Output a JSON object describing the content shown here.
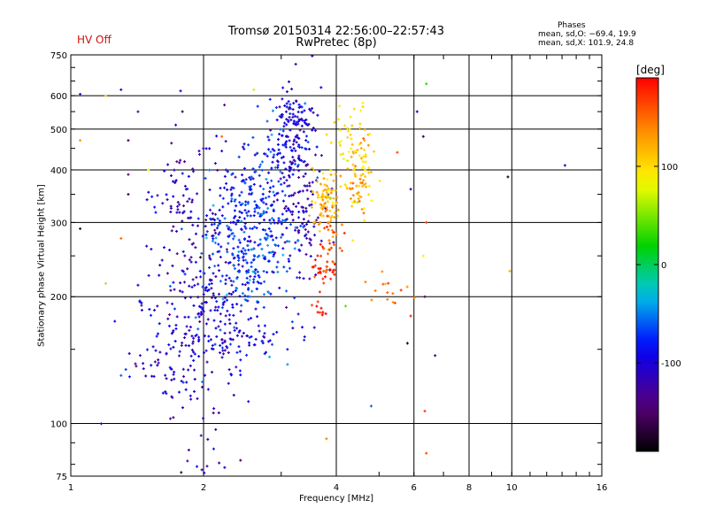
{
  "chart_data": {
    "type": "scatter",
    "title": "Tromsø 20150314 22:56:00–22:57:43",
    "subtitle": "RwPretec (8p)",
    "status": "HV Off",
    "phases": {
      "header": "Phases",
      "o_line": "mean, sd,O: −69.4, 19.9",
      "x_line": "mean, sd,X: 101.9, 24.8"
    },
    "xlabel": "Frequency [MHz]",
    "ylabel": "Stationary phase Virtual Height [km]",
    "xscale": "log",
    "yscale": "log",
    "xlim": [
      1,
      16
    ],
    "ylim": [
      75,
      750
    ],
    "xticks": [
      1,
      2,
      4,
      6,
      8,
      10,
      16
    ],
    "yticks": [
      75,
      100,
      200,
      300,
      400,
      500,
      600,
      750
    ],
    "grid": true,
    "colorbar": {
      "label": "[deg]",
      "range": [
        -190,
        190
      ],
      "ticks": [
        100,
        0,
        -100
      ]
    },
    "series": [
      {
        "clusters": [
          {
            "x": 1.95,
            "y": 200,
            "sx": 0.15,
            "sy": 0.45,
            "n": 260,
            "c": -115
          },
          {
            "x": 2.15,
            "y": 255,
            "sx": 0.12,
            "sy": 0.3,
            "n": 140,
            "c": -85
          },
          {
            "x": 2.55,
            "y": 255,
            "sx": 0.1,
            "sy": 0.16,
            "n": 150,
            "c": -70
          },
          {
            "x": 2.6,
            "y": 340,
            "sx": 0.09,
            "sy": 0.15,
            "n": 90,
            "c": -80
          },
          {
            "x": 3.1,
            "y": 450,
            "sx": 0.06,
            "sy": 0.15,
            "n": 110,
            "c": -90
          },
          {
            "x": 3.35,
            "y": 330,
            "sx": 0.06,
            "sy": 0.28,
            "n": 150,
            "c": -115
          },
          {
            "x": 1.7,
            "y": 150,
            "sx": 0.1,
            "sy": 0.12,
            "n": 60,
            "c": -95
          },
          {
            "x": 2.4,
            "y": 160,
            "sx": 0.12,
            "sy": 0.05,
            "n": 50,
            "c": -105
          },
          {
            "x": 1.75,
            "y": 350,
            "sx": 0.06,
            "sy": 0.1,
            "n": 25,
            "c": -130
          },
          {
            "x": 2.85,
            "y": 300,
            "sx": 0.08,
            "sy": 0.3,
            "n": 70,
            "c": -70
          },
          {
            "x": 3.25,
            "y": 545,
            "sx": 0.05,
            "sy": 0.06,
            "n": 40,
            "c": -100
          }
        ]
      },
      {
        "clusters": [
          {
            "x": 3.8,
            "y": 340,
            "sx": 0.035,
            "sy": 0.08,
            "n": 90,
            "c": 120
          },
          {
            "x": 3.75,
            "y": 235,
            "sx": 0.035,
            "sy": 0.05,
            "n": 35,
            "c": 175
          },
          {
            "x": 4.5,
            "y": 380,
            "sx": 0.04,
            "sy": 0.12,
            "n": 80,
            "c": 115
          },
          {
            "x": 4.3,
            "y": 470,
            "sx": 0.05,
            "sy": 0.1,
            "n": 40,
            "c": 100
          },
          {
            "x": 3.9,
            "y": 270,
            "sx": 0.04,
            "sy": 0.05,
            "n": 25,
            "c": 150
          },
          {
            "x": 3.7,
            "y": 188,
            "sx": 0.03,
            "sy": 0.015,
            "n": 10,
            "c": 185
          },
          {
            "x": 5.2,
            "y": 205,
            "sx": 0.08,
            "sy": 0.04,
            "n": 15,
            "c": 140
          }
        ]
      }
    ],
    "extra_points": [
      {
        "x": 1.05,
        "y": 605,
        "c": -120
      },
      {
        "x": 1.05,
        "y": 290,
        "c": -170
      },
      {
        "x": 1.05,
        "y": 470,
        "c": 130
      },
      {
        "x": 1.35,
        "y": 470,
        "c": -150
      },
      {
        "x": 1.35,
        "y": 390,
        "c": -140
      },
      {
        "x": 1.35,
        "y": 350,
        "c": -160
      },
      {
        "x": 1.3,
        "y": 620,
        "c": -120
      },
      {
        "x": 1.5,
        "y": 400,
        "c": 80
      },
      {
        "x": 1.2,
        "y": 600,
        "c": 110
      },
      {
        "x": 1.2,
        "y": 215,
        "c": 60
      },
      {
        "x": 1.3,
        "y": 130,
        "c": -60
      },
      {
        "x": 1.3,
        "y": 275,
        "c": 150
      },
      {
        "x": 6.4,
        "y": 640,
        "c": 30
      },
      {
        "x": 6.3,
        "y": 480,
        "c": -160
      },
      {
        "x": 6.4,
        "y": 300,
        "c": 170
      },
      {
        "x": 6.3,
        "y": 250,
        "c": 90
      },
      {
        "x": 6.35,
        "y": 200,
        "c": -150
      },
      {
        "x": 6.35,
        "y": 107,
        "c": 170
      },
      {
        "x": 6.4,
        "y": 85,
        "c": 160
      },
      {
        "x": 5.9,
        "y": 180,
        "c": 175
      },
      {
        "x": 5.8,
        "y": 155,
        "c": -190
      },
      {
        "x": 6.1,
        "y": 550,
        "c": -100
      },
      {
        "x": 6.7,
        "y": 145,
        "c": -120
      },
      {
        "x": 9.8,
        "y": 385,
        "c": -175
      },
      {
        "x": 9.9,
        "y": 230,
        "c": 120
      },
      {
        "x": 13.2,
        "y": 410,
        "c": -110
      },
      {
        "x": 3.8,
        "y": 92,
        "c": 140
      },
      {
        "x": 4.8,
        "y": 110,
        "c": -60
      },
      {
        "x": 5.5,
        "y": 440,
        "c": 160
      },
      {
        "x": 5.9,
        "y": 360,
        "c": -130
      },
      {
        "x": 4.2,
        "y": 190,
        "c": 40
      },
      {
        "x": 3.1,
        "y": 150,
        "c": -80
      },
      {
        "x": 2.2,
        "y": 480,
        "c": 150
      },
      {
        "x": 2.6,
        "y": 620,
        "c": 70
      }
    ]
  }
}
